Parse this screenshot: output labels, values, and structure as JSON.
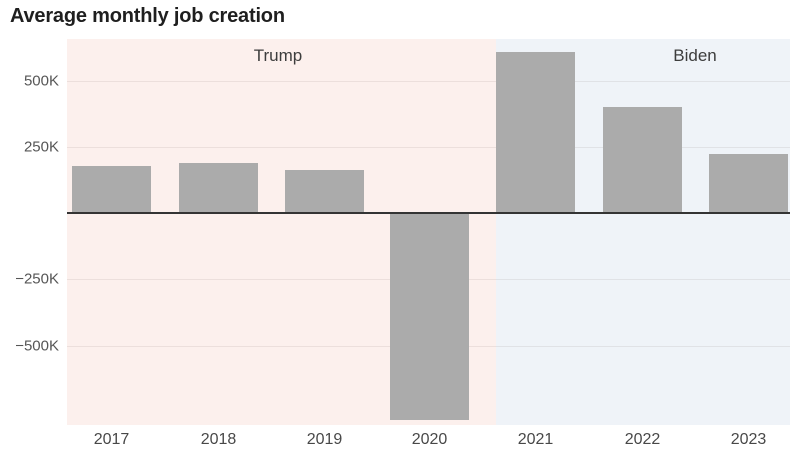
{
  "chart": {
    "title": "Average monthly job creation"
  },
  "chart_data": {
    "type": "bar",
    "title": "Average monthly job creation",
    "categories": [
      "2017",
      "2018",
      "2019",
      "2020",
      "2021",
      "2022",
      "2023"
    ],
    "values": [
      178,
      190,
      164,
      -780,
      608,
      400,
      224
    ],
    "values_unit": "thousands of jobs per month",
    "xlabel": "",
    "ylabel": "",
    "yticks": [
      {
        "value": 500,
        "label": "500K"
      },
      {
        "value": 250,
        "label": "250K"
      },
      {
        "value": -250,
        "label": "−250K"
      },
      {
        "value": -500,
        "label": "−500K"
      }
    ],
    "ylim": [
      -800,
      660
    ],
    "grid": true,
    "legend": false,
    "bar_color": "#ababab",
    "annotations": [
      {
        "label": "Trump",
        "years": [
          "2017",
          "2018",
          "2019",
          "2020"
        ],
        "band_color": "#fcf0ed"
      },
      {
        "label": "Biden",
        "years": [
          "2021",
          "2022",
          "2023"
        ],
        "band_color": "#eff3f8"
      }
    ],
    "colors": {
      "zero_line": "#343434",
      "title_text": "#1f1f1f",
      "tick_text": "#565656",
      "era_text": "#3d3d3d"
    }
  }
}
